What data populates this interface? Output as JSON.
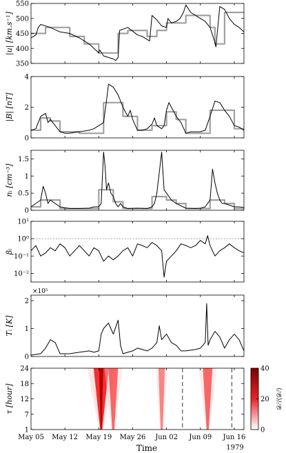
{
  "figure": {
    "xtick_labels": [
      "May 05",
      "May 12",
      "May 19",
      "May 26",
      "Jun 02",
      "Jun 09",
      "Jun 16"
    ],
    "xlabel": "Time",
    "year_label": "1979"
  },
  "chart_data": [
    {
      "id": "speed",
      "type": "line",
      "ylabel": "|u| [km.s⁻¹]",
      "ylim": [
        350,
        550
      ],
      "yticks": [
        "350",
        "400",
        "450",
        "500",
        "550"
      ],
      "x_range_days": [
        0,
        44
      ],
      "series": [
        {
          "color": "#000000",
          "x": [
            0,
            1,
            1.5,
            2,
            4,
            6,
            8,
            10,
            12,
            13,
            14,
            14.2,
            15,
            17,
            17.5,
            18,
            18.3,
            20,
            22,
            23,
            24,
            24.5,
            25,
            26,
            26.5,
            27,
            28,
            28.3,
            29,
            30,
            30.8,
            31.5,
            32,
            33,
            34,
            35,
            36,
            37,
            38,
            38.2,
            39,
            40,
            40.5,
            41,
            42,
            43,
            44
          ],
          "y": [
            435,
            445,
            470,
            480,
            470,
            455,
            450,
            435,
            415,
            400,
            385,
            395,
            375,
            365,
            360,
            370,
            460,
            470,
            445,
            440,
            430,
            425,
            510,
            495,
            485,
            475,
            470,
            500,
            485,
            490,
            500,
            520,
            545,
            520,
            510,
            500,
            490,
            470,
            420,
            405,
            540,
            530,
            515,
            500,
            480,
            470,
            455
          ]
        },
        {
          "color": "#999999",
          "x": [
            0,
            3,
            3,
            8,
            8,
            11,
            11,
            14,
            14,
            18,
            18,
            20,
            20,
            24,
            24,
            26,
            26,
            28,
            28,
            32,
            32,
            37,
            37,
            38,
            38,
            40,
            40,
            44
          ],
          "y": [
            450,
            450,
            470,
            470,
            440,
            440,
            415,
            415,
            385,
            385,
            450,
            450,
            460,
            460,
            440,
            440,
            460,
            460,
            485,
            485,
            510,
            510,
            470,
            470,
            415,
            415,
            520,
            520
          ]
        }
      ]
    },
    {
      "id": "bfield",
      "type": "line",
      "ylabel": "|B| [nT]",
      "ylim": [
        0,
        4
      ],
      "yticks": [
        "0",
        "2",
        "4"
      ],
      "x_range_days": [
        0,
        44
      ],
      "series": [
        {
          "color": "#000000",
          "x": [
            0,
            1,
            2,
            3,
            3.5,
            4,
            5,
            6,
            7,
            8,
            10,
            12,
            13,
            15,
            15.5,
            16,
            17,
            18,
            19,
            20,
            20.5,
            21,
            22,
            23,
            24,
            25,
            25.5,
            26,
            27,
            27.5,
            28,
            28.5,
            29,
            30,
            31,
            32,
            33,
            34,
            35,
            36,
            37,
            38,
            39,
            40,
            41,
            42,
            43,
            44
          ],
          "y": [
            0.5,
            0.6,
            1.4,
            1.6,
            1.0,
            1.2,
            0.8,
            0.4,
            0.3,
            0.3,
            0.4,
            0.5,
            0.6,
            1.0,
            2.2,
            3.5,
            3.3,
            2.8,
            2.0,
            1.4,
            1.8,
            1.2,
            0.5,
            0.5,
            0.6,
            0.9,
            1.3,
            0.8,
            0.6,
            0.8,
            1.8,
            2.3,
            2.0,
            1.4,
            1.0,
            0.3,
            0.4,
            0.4,
            0.4,
            0.5,
            1.4,
            2.4,
            2.3,
            1.8,
            1.4,
            0.8,
            0.7,
            0.5
          ]
        },
        {
          "color": "#999999",
          "x": [
            0,
            2,
            2,
            4,
            4,
            6,
            6,
            10,
            10,
            15,
            15,
            19,
            19,
            22,
            22,
            25,
            25,
            28,
            28,
            30,
            30,
            32,
            32,
            37,
            37,
            40,
            40,
            42,
            42,
            44
          ],
          "y": [
            0.5,
            0.5,
            1.3,
            1.3,
            1.1,
            1.1,
            0.4,
            0.4,
            0.3,
            0.3,
            2.3,
            2.3,
            1.4,
            1.4,
            0.5,
            0.5,
            0.8,
            0.8,
            1.7,
            1.7,
            1.2,
            1.2,
            0.3,
            0.3,
            1.8,
            1.8,
            1.8,
            1.8,
            0.6,
            0.6
          ]
        }
      ]
    },
    {
      "id": "density",
      "type": "line",
      "ylabel": "nᵢ [cm⁻³]",
      "ylim": [
        0,
        1.75
      ],
      "yticks": [
        "0",
        "0.5",
        "1",
        "1.5"
      ],
      "x_range_days": [
        0,
        44
      ],
      "series": [
        {
          "color": "#000000",
          "x": [
            0,
            1,
            2,
            2.5,
            3,
            3.5,
            4,
            5,
            6,
            8,
            10,
            12,
            13,
            14,
            14.5,
            15,
            15.3,
            15.6,
            16,
            16.5,
            17,
            17.5,
            18,
            18.5,
            19,
            20,
            22,
            24,
            25,
            25.5,
            26,
            26.5,
            27,
            27.5,
            28,
            29,
            30,
            32,
            34,
            35,
            36,
            37,
            37.5,
            38,
            38.5,
            39,
            39.5,
            40,
            41,
            42,
            43,
            44
          ],
          "y": [
            0.1,
            0.2,
            0.3,
            0.7,
            0.5,
            0.2,
            0.3,
            0.2,
            0.1,
            0.05,
            0.05,
            0.06,
            0.1,
            0.1,
            0.2,
            1.7,
            1.3,
            0.6,
            0.8,
            0.5,
            0.4,
            0.2,
            0.1,
            0.2,
            0.1,
            0.05,
            0.06,
            0.05,
            0.1,
            0.2,
            0.5,
            1.1,
            1.7,
            0.6,
            0.5,
            0.3,
            0.2,
            0.06,
            0.05,
            0.06,
            0.1,
            0.3,
            1.2,
            0.8,
            0.5,
            0.3,
            0.2,
            0.2,
            0.15,
            0.1,
            0.1,
            0.08
          ]
        },
        {
          "color": "#999999",
          "x": [
            0,
            2,
            2,
            6,
            6,
            10,
            10,
            14,
            14,
            17,
            17,
            19,
            19,
            25,
            25,
            28,
            28,
            30,
            30,
            32,
            32,
            37,
            37,
            40,
            40,
            42,
            42,
            44
          ],
          "y": [
            0.1,
            0.1,
            0.3,
            0.3,
            0.05,
            0.05,
            0.05,
            0.05,
            0.6,
            0.6,
            0.25,
            0.25,
            0.05,
            0.05,
            0.4,
            0.4,
            0.3,
            0.3,
            0.2,
            0.2,
            0.05,
            0.05,
            0.3,
            0.3,
            0.2,
            0.2,
            0.05,
            0.05
          ]
        }
      ]
    },
    {
      "id": "beta",
      "type": "line",
      "ylabel": "βᵢ",
      "yscale": "log",
      "ylim_log10": [
        -2.5,
        1
      ],
      "yticks": [
        "10⁻²",
        "10⁻¹",
        "10⁰",
        "10¹"
      ],
      "reference_line": {
        "value": 1,
        "style": "dotted"
      },
      "x_range_days": [
        0,
        44
      ],
      "series": [
        {
          "color": "#000000",
          "x": [
            0,
            1,
            2,
            3,
            4,
            5,
            6,
            7,
            8,
            9,
            10,
            11,
            12,
            13,
            14,
            15,
            16,
            17,
            18,
            19,
            20,
            21,
            22,
            23,
            24,
            25,
            26,
            27,
            27.5,
            28,
            29,
            30,
            31,
            32,
            33,
            34,
            35,
            36,
            36.5,
            37,
            38,
            39,
            40,
            41,
            42,
            43,
            44
          ],
          "y": [
            0.2,
            0.4,
            0.1,
            0.15,
            0.3,
            0.2,
            0.5,
            0.3,
            0.1,
            0.2,
            0.4,
            0.2,
            0.1,
            0.3,
            0.2,
            0.05,
            0.1,
            0.06,
            0.1,
            0.2,
            0.3,
            0.1,
            0.5,
            0.4,
            0.3,
            0.6,
            0.4,
            0.2,
            0.006,
            0.05,
            0.1,
            0.2,
            0.5,
            0.4,
            0.3,
            0.4,
            0.8,
            0.5,
            1.5,
            0.4,
            0.1,
            0.2,
            0.3,
            0.5,
            0.3,
            0.2,
            0.15
          ]
        }
      ]
    },
    {
      "id": "temperature",
      "type": "line",
      "ylabel": "Tᵢ [K]",
      "ylim": [
        0,
        2.2
      ],
      "yticks": [
        "0",
        "1",
        "2"
      ],
      "multiplier": "×10⁵",
      "x_range_days": [
        0,
        44
      ],
      "series": [
        {
          "color": "#000000",
          "x": [
            0,
            2,
            3,
            4,
            5,
            6,
            8,
            10,
            12,
            13,
            14,
            14.5,
            15,
            16,
            17,
            18,
            18.5,
            19,
            20,
            21,
            22,
            24,
            25,
            26,
            26.5,
            27,
            28,
            29,
            30,
            31,
            32,
            34,
            35,
            36,
            36.3,
            36.6,
            37,
            38,
            39,
            40,
            41,
            42,
            43,
            44
          ],
          "y": [
            0.05,
            0.1,
            0.3,
            0.6,
            0.5,
            0.1,
            0.1,
            0.15,
            0.2,
            0.15,
            0.2,
            0.8,
            1.0,
            1.2,
            0.8,
            1.3,
            0.4,
            0.1,
            0.15,
            0.2,
            0.3,
            0.2,
            0.3,
            0.5,
            1.1,
            0.6,
            0.8,
            0.5,
            0.4,
            0.2,
            0.2,
            0.25,
            0.3,
            0.5,
            1.9,
            0.4,
            0.6,
            0.9,
            0.7,
            0.3,
            0.6,
            0.8,
            0.6,
            0.2
          ]
        }
      ]
    },
    {
      "id": "spectrum",
      "type": "heatmap",
      "ylabel": "τ [hour]",
      "ylim": [
        1,
        24
      ],
      "yticks": [
        "1",
        "7",
        "12",
        "18",
        "24"
      ],
      "colorbar": {
        "label": "𝒟ᵢᴵ/⟨𝒟ᵢᴵ⟩",
        "min": 0,
        "max": 40,
        "ticks": [
          "0",
          "20",
          "40"
        ],
        "low_color": "#ffffff",
        "high_color": "#7b0000"
      },
      "events": [
        {
          "day": 14.5,
          "intensity": 1.0
        },
        {
          "day": 17.0,
          "intensity": 0.55
        },
        {
          "day": 27.0,
          "intensity": 0.3
        },
        {
          "day": 36.5,
          "intensity": 0.55
        }
      ],
      "dashed_lines_days": [
        31.3,
        41.5
      ],
      "x_range_days": [
        0,
        44
      ]
    }
  ]
}
